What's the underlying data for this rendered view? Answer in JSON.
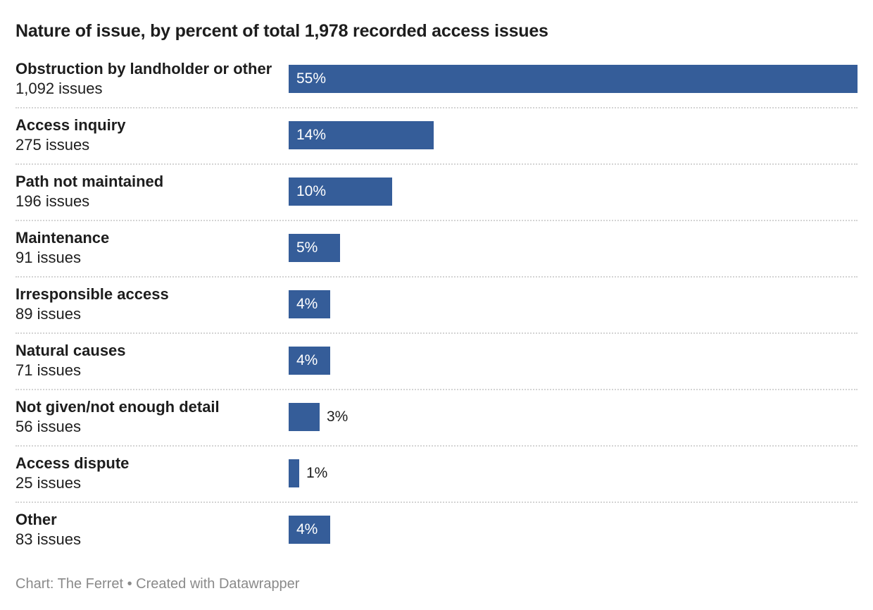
{
  "colors": {
    "bar": "#355d99",
    "text": "#1d1d1d",
    "footer": "#8a8a8a",
    "divider": "#d4d4d4"
  },
  "chart_data": {
    "type": "bar",
    "orientation": "horizontal",
    "title": "Nature of issue, by percent of total 1,978 recorded access issues",
    "xlim": [
      0,
      55
    ],
    "categories": [
      "Obstruction by landholder or other",
      "Access inquiry",
      "Path not maintained",
      "Maintenance",
      "Irresponsible access",
      "Natural causes",
      "Not given/not enough detail",
      "Access dispute",
      "Other"
    ],
    "issue_counts": [
      "1,092 issues",
      "275 issues",
      "196 issues",
      "91 issues",
      "89 issues",
      "71 issues",
      "56 issues",
      "25 issues",
      "83 issues"
    ],
    "values": [
      55,
      14,
      10,
      5,
      4,
      4,
      3,
      1,
      4
    ],
    "value_labels": [
      "55%",
      "14%",
      "10%",
      "5%",
      "4%",
      "4%",
      "3%",
      "1%",
      "4%"
    ],
    "footer": "Chart: The Ferret • Created with Datawrapper"
  }
}
